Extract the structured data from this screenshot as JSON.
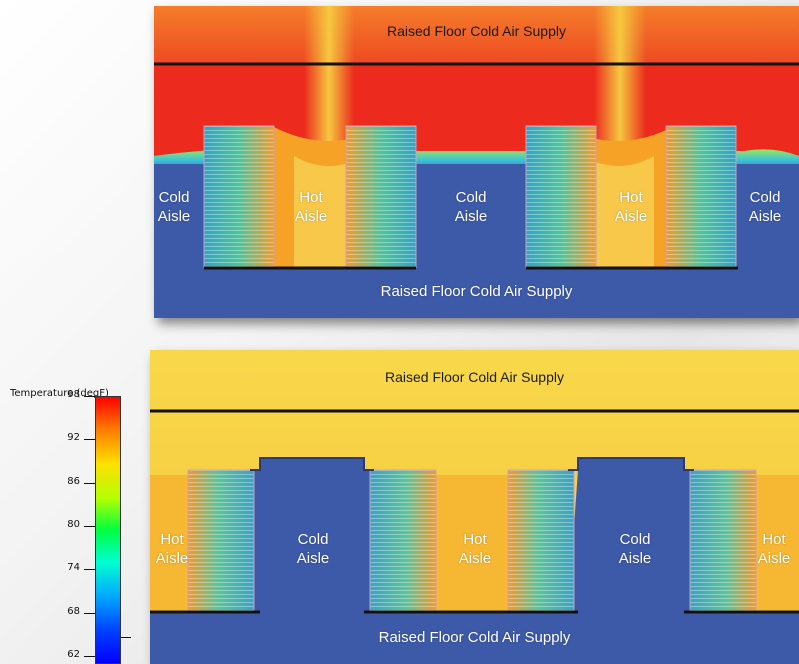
{
  "top_panel": {
    "supply_top": "Raised Floor Cold Air Supply",
    "supply_bottom": "Raised Floor Cold Air Supply",
    "aisles": [
      {
        "line1": "Cold",
        "line2": "Aisle"
      },
      {
        "line1": "Hot",
        "line2": "Aisle"
      },
      {
        "line1": "Cold",
        "line2": "Aisle"
      },
      {
        "line1": "Hot",
        "line2": "Aisle"
      },
      {
        "line1": "Cold",
        "line2": "Aisle"
      }
    ]
  },
  "bottom_panel": {
    "supply_top": "Raised Floor Cold Air Supply",
    "supply_bottom": "Raised Floor Cold Air Supply",
    "aisles": [
      {
        "line1": "Hot",
        "line2": "Aisle"
      },
      {
        "line1": "Cold",
        "line2": "Aisle"
      },
      {
        "line1": "Hot",
        "line2": "Aisle"
      },
      {
        "line1": "Cold",
        "line2": "Aisle"
      },
      {
        "line1": "Hot",
        "line2": "Aisle"
      }
    ]
  },
  "legend": {
    "title": "Temperature (degF)",
    "ticks": [
      "98",
      "92",
      "86",
      "80",
      "74",
      "68",
      "62"
    ]
  },
  "colors": {
    "cold_blue": "#3d5aa8",
    "hot_red": "#ec2a1e",
    "warm_orange": "#f6a624",
    "warm_yellow": "#f8d12e",
    "rack_green": "#3fae8c"
  }
}
